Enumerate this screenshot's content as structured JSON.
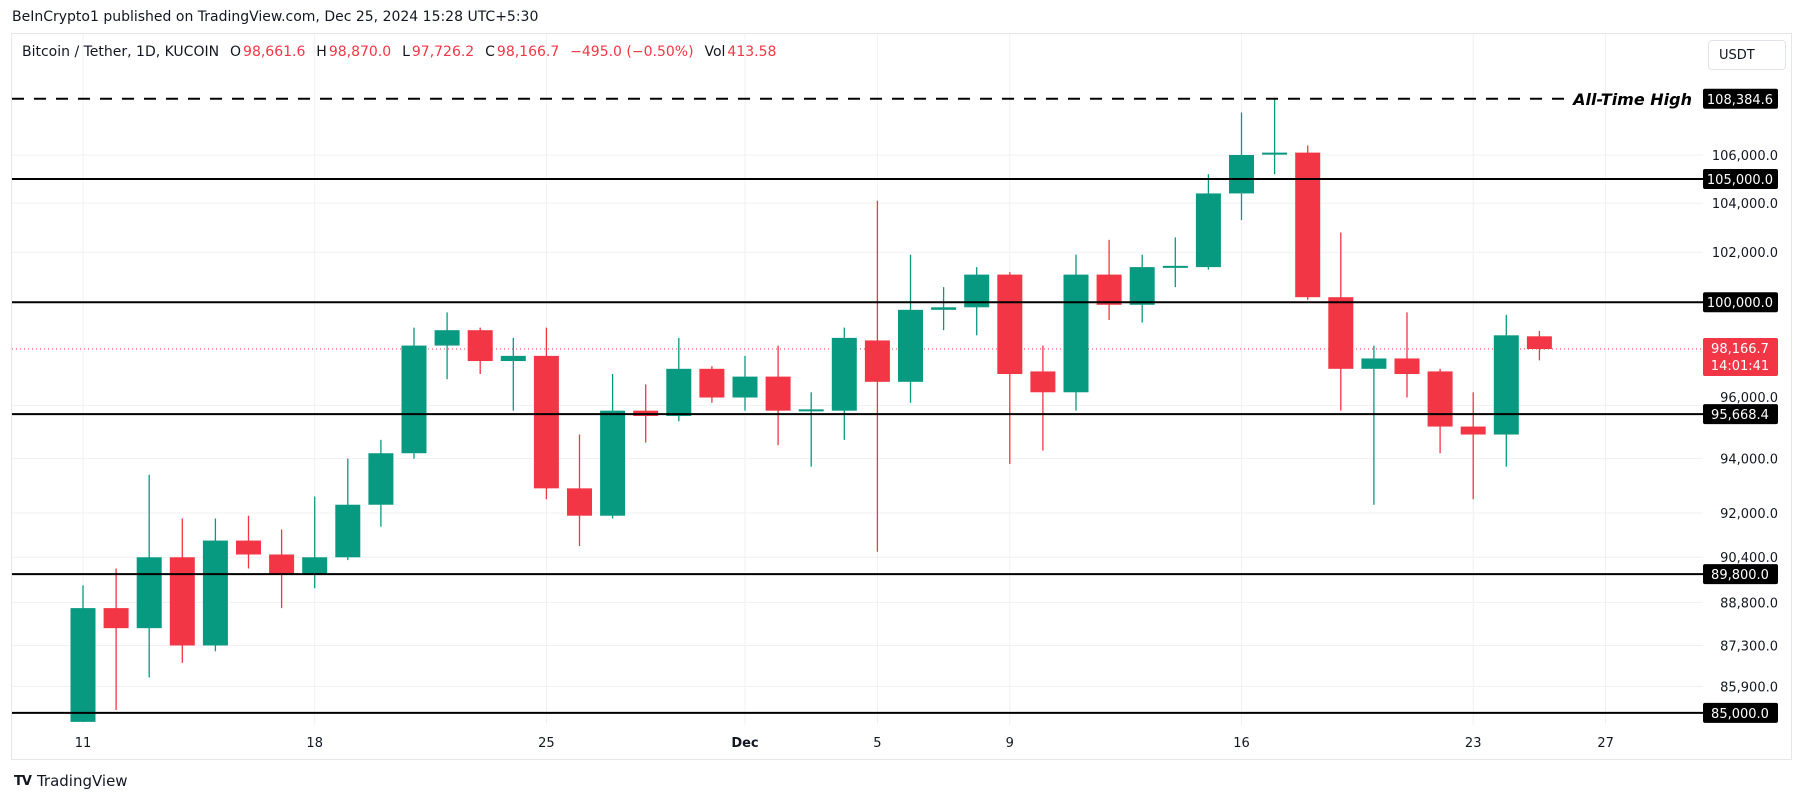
{
  "publisher_line": "BeInCrypto1 published on TradingView.com, Dec 25, 2024 15:28 UTC+5:30",
  "legend": {
    "symbol": "Bitcoin / Tether, 1D, KUCOIN",
    "o_label": "O",
    "o_value": "98,661.6",
    "h_label": "H",
    "h_value": "98,870.0",
    "l_label": "L",
    "l_value": "97,726.2",
    "c_label": "C",
    "c_value": "98,166.7",
    "change": "−495.0 (−0.50%)",
    "vol_label": "Vol",
    "vol_value": "413.58"
  },
  "currency_button": "USDT",
  "footer_brand": "TradingView",
  "colors": {
    "up": "#089981",
    "down": "#f23645",
    "level": "#000000",
    "grid": "#f0f1f3"
  },
  "chart_data": {
    "type": "candlestick",
    "y_scale": "log",
    "ylim": [
      84700,
      110000
    ],
    "grid": true,
    "dates": [
      "Nov 11",
      "Nov 12",
      "Nov 13",
      "Nov 14",
      "Nov 15",
      "Nov 16",
      "Nov 17",
      "Nov 18",
      "Nov 19",
      "Nov 20",
      "Nov 21",
      "Nov 22",
      "Nov 23",
      "Nov 24",
      "Nov 25",
      "Nov 26",
      "Nov 27",
      "Nov 28",
      "Nov 29",
      "Nov 30",
      "Dec 1",
      "Dec 2",
      "Dec 3",
      "Dec 4",
      "Dec 5",
      "Dec 6",
      "Dec 7",
      "Dec 8",
      "Dec 9",
      "Dec 10",
      "Dec 11",
      "Dec 12",
      "Dec 13",
      "Dec 14",
      "Dec 15",
      "Dec 16",
      "Dec 17",
      "Dec 18",
      "Dec 19",
      "Dec 20",
      "Dec 21",
      "Dec 22",
      "Dec 23",
      "Dec 24",
      "Dec 25"
    ],
    "ohlc": [
      [
        84700,
        89400,
        84700,
        88600
      ],
      [
        88600,
        90000,
        85100,
        87900
      ],
      [
        87900,
        93400,
        86200,
        90400
      ],
      [
        90400,
        91800,
        86700,
        87300
      ],
      [
        87300,
        91800,
        87100,
        91000
      ],
      [
        91000,
        91900,
        90000,
        90500
      ],
      [
        90500,
        91400,
        88600,
        89800
      ],
      [
        89800,
        92600,
        89300,
        90400
      ],
      [
        90400,
        94000,
        90300,
        92300
      ],
      [
        92300,
        94700,
        91500,
        94200
      ],
      [
        94200,
        99000,
        94000,
        98300
      ],
      [
        98300,
        99600,
        97000,
        98900
      ],
      [
        98900,
        99000,
        97200,
        97700
      ],
      [
        97700,
        98600,
        95800,
        97900
      ],
      [
        97900,
        99000,
        92500,
        92900
      ],
      [
        92900,
        94900,
        90800,
        91900
      ],
      [
        91900,
        97200,
        91800,
        95800
      ],
      [
        95800,
        96800,
        94600,
        95600
      ],
      [
        95600,
        98600,
        95400,
        97400
      ],
      [
        97400,
        97500,
        96100,
        96300
      ],
      [
        96300,
        97900,
        95800,
        97100
      ],
      [
        97100,
        98300,
        94500,
        95800
      ],
      [
        95800,
        96500,
        93700,
        95850
      ],
      [
        95800,
        99000,
        94700,
        98600
      ],
      [
        98500,
        104100,
        90600,
        96900
      ],
      [
        96900,
        101900,
        96100,
        99700
      ],
      [
        99700,
        100600,
        98900,
        99800
      ],
      [
        99800,
        101400,
        98700,
        101100
      ],
      [
        101100,
        101200,
        93800,
        97200
      ],
      [
        97300,
        98300,
        94300,
        96500
      ],
      [
        96500,
        101900,
        95800,
        101100
      ],
      [
        101100,
        102500,
        99300,
        99900
      ],
      [
        99900,
        101900,
        99200,
        101400
      ],
      [
        101400,
        102600,
        100600,
        101450
      ],
      [
        101400,
        105200,
        101300,
        104400
      ],
      [
        104400,
        107800,
        103300,
        106000
      ],
      [
        106050,
        108384.6,
        105200,
        106100
      ],
      [
        106100,
        106400,
        100100,
        100200
      ],
      [
        100200,
        102800,
        95800,
        97400
      ],
      [
        97400,
        98300,
        92300,
        97800
      ],
      [
        97800,
        99600,
        96300,
        97200
      ],
      [
        97300,
        97400,
        94200,
        95200
      ],
      [
        95200,
        96500,
        92500,
        94900
      ],
      [
        94900,
        99500,
        93700,
        98700
      ],
      [
        98661.6,
        98870.0,
        97726.2,
        98166.7
      ]
    ],
    "x_tick_labels": [
      {
        "label": "11",
        "date": "Nov 11"
      },
      {
        "label": "18",
        "date": "Nov 18"
      },
      {
        "label": "25",
        "date": "Nov 25"
      },
      {
        "label": "Dec",
        "date": "Dec 1"
      },
      {
        "label": "5",
        "date": "Dec 5"
      },
      {
        "label": "9",
        "date": "Dec 9"
      },
      {
        "label": "16",
        "date": "Dec 16"
      },
      {
        "label": "23",
        "date": "Dec 23"
      },
      {
        "label": "27",
        "date": "Dec 27"
      }
    ],
    "y_tick_labels": [
      {
        "label": "106,000.0",
        "value": 106000
      },
      {
        "label": "104,000.0",
        "value": 104000
      },
      {
        "label": "102,000.0",
        "value": 102000
      },
      {
        "label": "96,000.0",
        "value": 96000
      },
      {
        "label": "94,000.0",
        "value": 94000
      },
      {
        "label": "92,000.0",
        "value": 92000
      },
      {
        "label": "90,400.0",
        "value": 90400
      },
      {
        "label": "88,800.0",
        "value": 88800
      },
      {
        "label": "87,300.0",
        "value": 87300
      },
      {
        "label": "85,900.0",
        "value": 85900
      }
    ],
    "levels": [
      {
        "label": "108,384.6",
        "value": 108384.6,
        "style": "dashed",
        "annotation": "All-Time High"
      },
      {
        "label": "105,000.0",
        "value": 105000,
        "style": "solid"
      },
      {
        "label": "100,000.0",
        "value": 100000,
        "style": "solid"
      },
      {
        "label": "95,668.4",
        "value": 95668.4,
        "style": "solid"
      },
      {
        "label": "89,800.0",
        "value": 89800,
        "style": "solid"
      },
      {
        "label": "85,000.0",
        "value": 85000,
        "style": "solid"
      }
    ],
    "last_price": {
      "label": "98,166.7",
      "value": 98166.7,
      "countdown": "14:01:41"
    }
  }
}
